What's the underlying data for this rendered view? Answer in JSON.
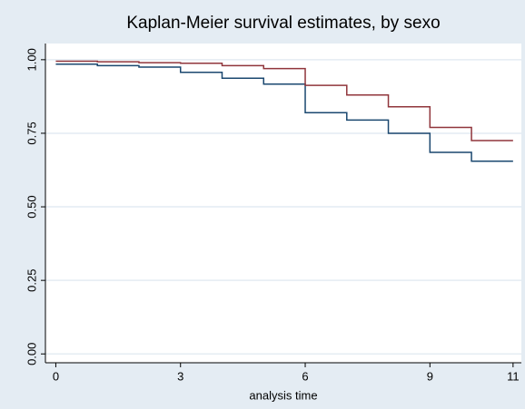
{
  "chart_data": {
    "type": "step-line",
    "title": "Kaplan-Meier survival estimates, by sexo",
    "x_label": "analysis time",
    "x": [
      0,
      1,
      2,
      3,
      4,
      5,
      6,
      7,
      8,
      9,
      10,
      11
    ],
    "series": [
      {
        "color": "#1a476f",
        "values": [
          0.985,
          0.98,
          0.975,
          0.957,
          0.937,
          0.917,
          0.82,
          0.795,
          0.75,
          0.685,
          0.655,
          0.655
        ]
      },
      {
        "color": "#90353b",
        "values": [
          0.995,
          0.993,
          0.99,
          0.988,
          0.98,
          0.97,
          0.913,
          0.88,
          0.84,
          0.77,
          0.725,
          0.725
        ]
      }
    ],
    "xlim": [
      -0.25,
      11.2
    ],
    "ylim": [
      -0.03,
      1.055
    ],
    "xticks": [
      0,
      3,
      6,
      9,
      11
    ],
    "yticks": [
      {
        "value": 0,
        "label": "0.00"
      },
      {
        "value": 0.25,
        "label": "0.25"
      },
      {
        "value": 0.5,
        "label": "0.50"
      },
      {
        "value": 0.75,
        "label": "0.75"
      },
      {
        "value": 1,
        "label": "1.00"
      }
    ],
    "grid": true
  }
}
